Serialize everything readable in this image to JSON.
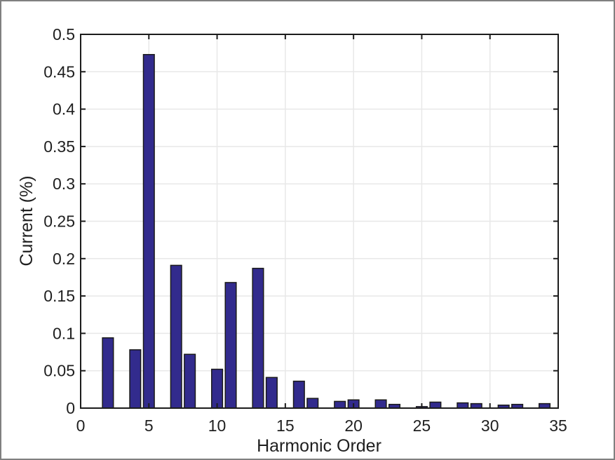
{
  "window": {
    "background": "#ffffff",
    "border_color": "#808080"
  },
  "chart_data": {
    "type": "bar",
    "title": "",
    "xlabel": "Harmonic Order",
    "ylabel": "Current (%)",
    "x": [
      2,
      4,
      5,
      7,
      8,
      10,
      11,
      13,
      14,
      16,
      17,
      19,
      20,
      22,
      23,
      25,
      26,
      28,
      29,
      31,
      32,
      34
    ],
    "values": [
      0.094,
      0.078,
      0.473,
      0.191,
      0.072,
      0.052,
      0.168,
      0.187,
      0.041,
      0.036,
      0.013,
      0.009,
      0.011,
      0.011,
      0.005,
      0.002,
      0.008,
      0.007,
      0.006,
      0.004,
      0.005,
      0.006
    ],
    "bar_width_units": 0.8,
    "xlim": [
      0,
      35
    ],
    "ylim": [
      0,
      0.5
    ],
    "xticks": [
      0,
      5,
      10,
      15,
      20,
      25,
      30,
      35
    ],
    "xtick_labels": [
      "0",
      "5",
      "10",
      "15",
      "20",
      "25",
      "30",
      "35"
    ],
    "yticks": [
      0,
      0.05,
      0.1,
      0.15,
      0.2,
      0.25,
      0.3,
      0.35,
      0.4,
      0.45,
      0.5
    ],
    "ytick_labels": [
      "0",
      "0.05",
      "0.1",
      "0.15",
      "0.2",
      "0.25",
      "0.3",
      "0.35",
      "0.4",
      "0.45",
      "0.5"
    ],
    "grid": true,
    "box": true,
    "tick_direction": "in",
    "legend": null,
    "colors": {
      "bar_fill": "#322b8d",
      "bar_edge": "#1a1a1a",
      "grid": "#e8e8e8",
      "axis": "#1c1c1c",
      "text": "#1f1f1f"
    }
  }
}
